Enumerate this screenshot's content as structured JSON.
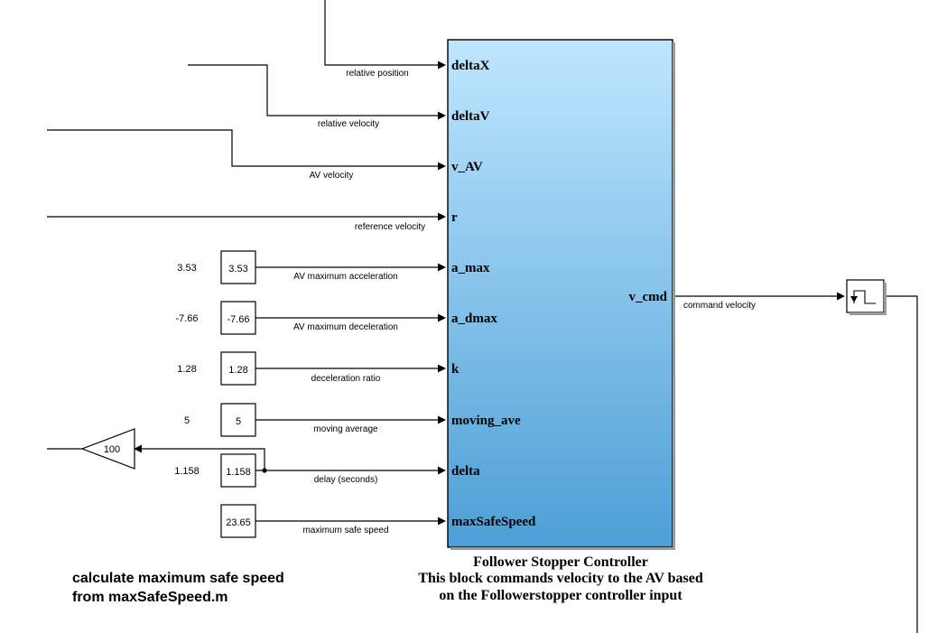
{
  "main_block": {
    "title": "Follower Stopper Controller",
    "desc_line1": "This block commands velocity to the AV based",
    "desc_line2": "on the Followerstopper controller input",
    "ports_in": [
      "deltaX",
      "deltaV",
      "v_AV",
      "r",
      "a_max",
      "a_dmax",
      "k",
      "moving_ave",
      "delta",
      "maxSafeSpeed"
    ],
    "port_out": "v_cmd",
    "gradient_top": "#bfe6ff",
    "gradient_bottom": "#4d9fd6"
  },
  "signals": {
    "relative_position": "relative position",
    "relative_velocity": "relative velocity",
    "av_velocity": "AV velocity",
    "reference_velocity": "reference velocity",
    "av_max_accel": "AV maximum acceleration",
    "av_max_decel": "AV maximum deceleration",
    "decel_ratio": "deceleration ratio",
    "moving_average": "moving average",
    "delay": "delay (seconds)",
    "max_safe_speed": "maximum safe speed",
    "command_velocity": "command velocity"
  },
  "constants": [
    {
      "display": "3.53",
      "block": "3.53"
    },
    {
      "display": "-7.66",
      "block": "-7.66"
    },
    {
      "display": "1.28",
      "block": "1.28"
    },
    {
      "display": "5",
      "block": "5"
    },
    {
      "display": "1.158",
      "block": "1.158"
    },
    {
      "display": "",
      "block": "23.65"
    }
  ],
  "gain": {
    "value": "100"
  },
  "zoh_icon": "zero-order-hold-icon",
  "annotation": {
    "line1": "calculate maximum safe speed",
    "line2": "from maxSafeSpeed.m"
  }
}
